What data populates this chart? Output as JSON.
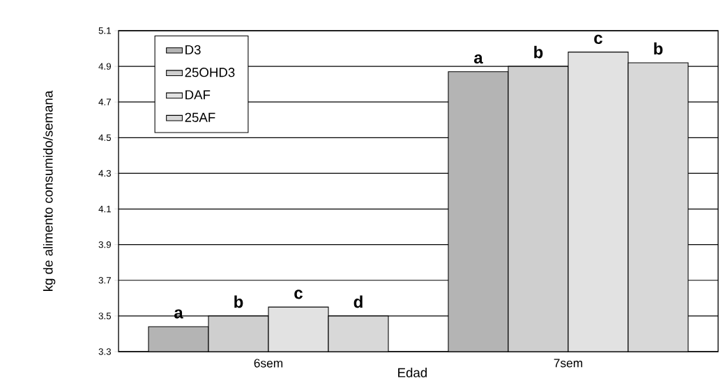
{
  "chart_data": {
    "type": "bar",
    "xlabel": "Edad",
    "ylabel": "kg de alimento consumido/semana",
    "categories": [
      "6sem",
      "7sem"
    ],
    "series": [
      {
        "name": "D3",
        "color": "#b4b4b4",
        "values": [
          3.44,
          4.87
        ],
        "value_labels": [
          "a",
          "a"
        ]
      },
      {
        "name": "25OHD3",
        "color": "#cfcfcf",
        "values": [
          3.5,
          4.9
        ],
        "value_labels": [
          "b",
          "b"
        ]
      },
      {
        "name": "DAF",
        "color": "#e2e2e2",
        "values": [
          3.55,
          4.98
        ],
        "value_labels": [
          "c",
          "c"
        ]
      },
      {
        "name": "25AF",
        "color": "#d8d8d8",
        "values": [
          3.5,
          4.92
        ],
        "value_labels": [
          "d",
          "b"
        ]
      }
    ],
    "ylim": [
      3.3,
      5.1
    ],
    "yticks": [
      3.3,
      3.5,
      3.7,
      3.9,
      4.1,
      4.3,
      4.5,
      4.7,
      4.9,
      5.1
    ],
    "grid": "y",
    "legend": "top left"
  }
}
